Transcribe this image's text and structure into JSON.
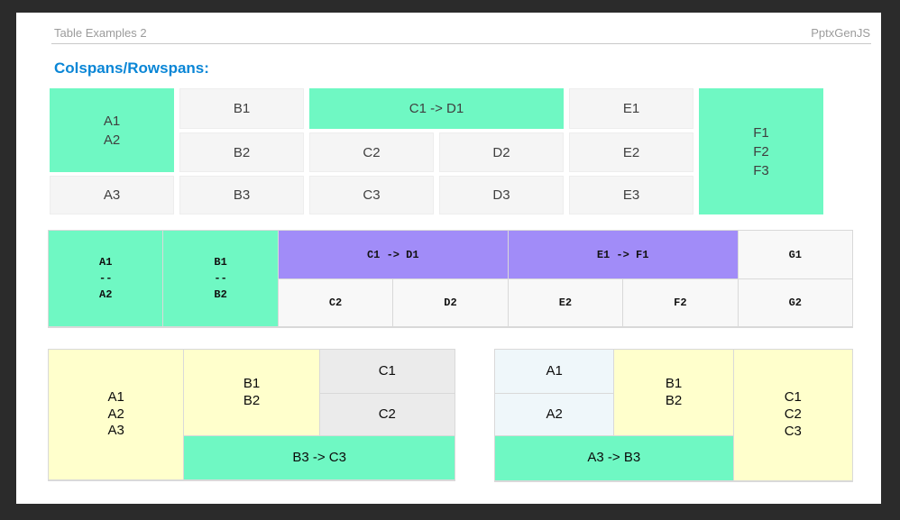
{
  "header": {
    "title": "Table Examples 2",
    "brand": "PptxGenJS"
  },
  "heading": "Colspans/Rowspans:",
  "colors": {
    "frame": "#2B2B2B",
    "green": "#6FF8C3",
    "purple": "#A18CF8",
    "yellow": "#FFFFCC",
    "lightblue": "#EFF7FA",
    "cellgray1": "#F5F5F5",
    "celllight": "#F8F8F8",
    "cellgray3": "#EBEBEB",
    "border": "#D9D9D9",
    "blue": "#0A86D6",
    "graytext": "#9B9B9B",
    "line": "#C9C9C9",
    "text1": "#3F3F3F"
  },
  "t1": {
    "a1a2": "A1\nA2",
    "b1": "B1",
    "c1d1": "C1 -> D1",
    "e1": "E1",
    "f1f2f3": "F1\nF2\nF3",
    "b2": "B2",
    "c2": "C2",
    "d2": "D2",
    "e2": "E2",
    "a3": "A3",
    "b3": "B3",
    "c3": "C3",
    "d3": "D3",
    "e3": "E3"
  },
  "t2": {
    "a1a2": "A1\n--\nA2",
    "b1b2": "B1\n--\nB2",
    "c1d1": "C1 -> D1",
    "e1f1": "E1 -> F1",
    "g1": "G1",
    "c2": "C2",
    "d2": "D2",
    "e2": "E2",
    "f2": "F2",
    "g2": "G2"
  },
  "t3": {
    "a1a2a3": "A1\nA2\nA3",
    "b1b2": "B1\nB2",
    "c1": "C1",
    "c2": "C2",
    "b3c3": "B3 -> C3"
  },
  "t4": {
    "a1": "A1",
    "b1b2": "B1\nB2",
    "c1c2c3": "C1\nC2\nC3",
    "a2": "A2",
    "a3b3": "A3 -> B3"
  }
}
